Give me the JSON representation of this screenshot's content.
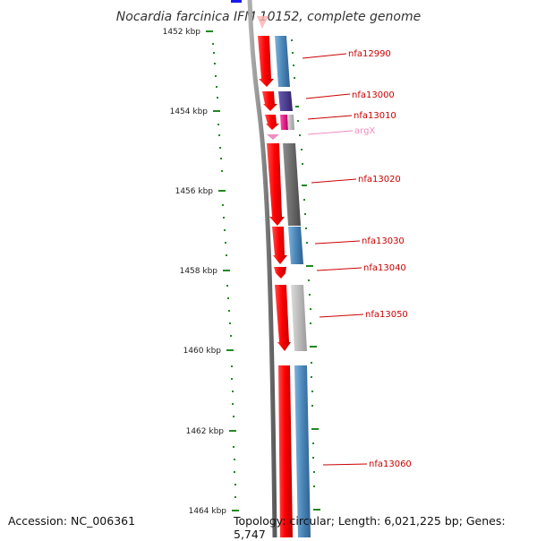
{
  "title": "Nocardia farcinica IFM 10152, complete genome",
  "accession": "Accession: NC_006361",
  "summary": "Topology: circular; Length: 6,021,225 bp; Genes: 5,747",
  "scale_labels": [
    "1452 kbp",
    "1454 kbp",
    "1456 kbp",
    "1458 kbp",
    "1460 kbp",
    "1462 kbp",
    "1464 kbp"
  ],
  "genes": [
    {
      "label": "nfa12990",
      "cog_color": "#4a86b8"
    },
    {
      "label": "nfa13000",
      "cog_color": "#4b3a8c"
    },
    {
      "label": "nfa13010",
      "cog_color": "#e0147f"
    },
    {
      "label": "argX",
      "cog_color": "#f08cc0"
    },
    {
      "label": "nfa13020",
      "cog_color": "#6a6a6a"
    },
    {
      "label": "nfa13030",
      "cog_color": "#4a86b8"
    },
    {
      "label": "nfa13040",
      "cog_color": "#ff0000"
    },
    {
      "label": "nfa13050",
      "cog_color": "#b4b4b4"
    },
    {
      "label": "nfa13060",
      "cog_color": "#4a86b8"
    }
  ],
  "colors": {
    "strand": "#ff0000",
    "tick": "#228822",
    "label": "#cc0000",
    "rna_label": "#f08cc0",
    "backbone": "#8a8a8a"
  }
}
